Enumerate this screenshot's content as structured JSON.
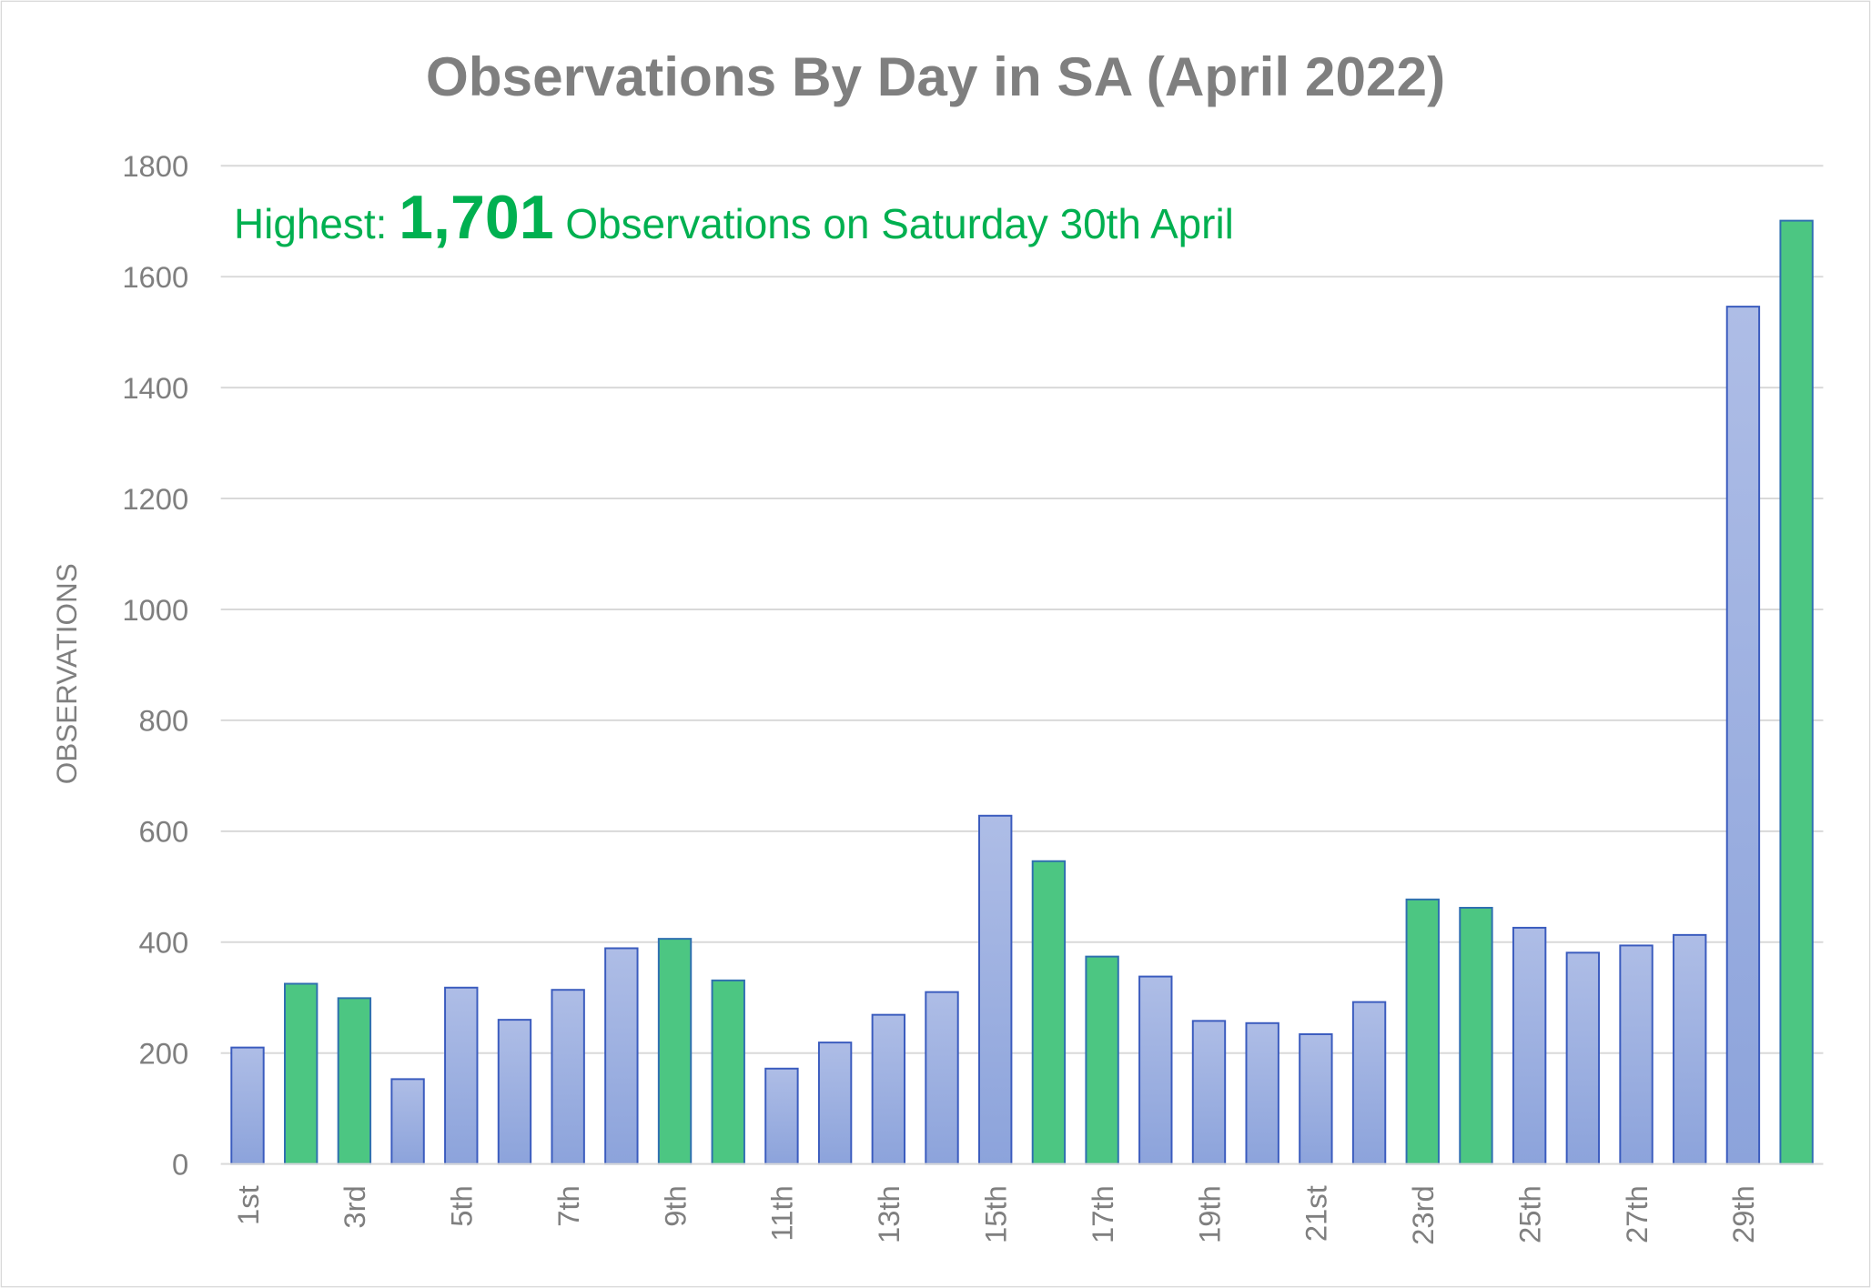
{
  "chart_data": {
    "type": "bar",
    "title": "Observations By Day in SA (April 2022)",
    "ylabel": "OBSERVATIONS",
    "xlabel": "",
    "ylim": [
      0,
      1800
    ],
    "yticks": [
      0,
      200,
      400,
      600,
      800,
      1000,
      1200,
      1400,
      1600,
      1800
    ],
    "grid": true,
    "annotation": {
      "prefix": "Highest: ",
      "value": "1,701",
      "suffix": " Observations on Saturday 30th April"
    },
    "categories": [
      "1st",
      "2nd",
      "3rd",
      "4th",
      "5th",
      "6th",
      "7th",
      "8th",
      "9th",
      "10th",
      "11th",
      "12th",
      "13th",
      "14th",
      "15th",
      "16th",
      "17th",
      "18th",
      "19th",
      "20th",
      "21st",
      "22nd",
      "23rd",
      "24th",
      "25th",
      "26th",
      "27th",
      "28th",
      "29th",
      "30th"
    ],
    "visible_tick_labels": [
      "1st",
      "3rd",
      "5th",
      "7th",
      "9th",
      "11th",
      "13th",
      "15th",
      "17th",
      "19th",
      "21st",
      "23rd",
      "25th",
      "27th",
      "29th"
    ],
    "values": [
      210,
      325,
      299,
      153,
      318,
      260,
      314,
      389,
      406,
      331,
      172,
      219,
      269,
      310,
      628,
      546,
      374,
      338,
      258,
      254,
      234,
      292,
      477,
      462,
      426,
      381,
      394,
      413,
      1546,
      1701
    ],
    "weekend": [
      false,
      true,
      true,
      false,
      false,
      false,
      false,
      false,
      true,
      true,
      false,
      false,
      false,
      false,
      false,
      true,
      true,
      false,
      false,
      false,
      false,
      false,
      true,
      true,
      false,
      false,
      false,
      false,
      false,
      true
    ],
    "colors": {
      "weekday_fill": "#9FB1E0",
      "weekday_stroke": "#3A5BBE",
      "weekend_fill": "#4CC682",
      "weekend_stroke": "#2F6FB0",
      "annotation": "#00B050",
      "title": "#7F7F7F",
      "axis_text": "#7F7F7F",
      "grid": "#D9D9D9"
    }
  }
}
